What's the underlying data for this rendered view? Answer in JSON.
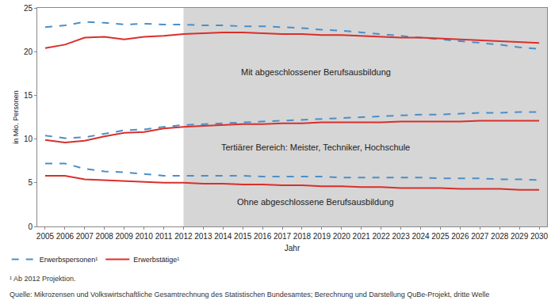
{
  "chart_data": {
    "type": "line",
    "x_label": "Jahr",
    "y_label": "in Mio. Personen",
    "x": [
      2005,
      2006,
      2007,
      2008,
      2009,
      2010,
      2011,
      2012,
      2013,
      2014,
      2015,
      2016,
      2017,
      2018,
      2019,
      2020,
      2021,
      2022,
      2023,
      2024,
      2025,
      2026,
      2027,
      2028,
      2029,
      2030
    ],
    "xlim": [
      2004.6,
      2030.4
    ],
    "xticks": [
      2005,
      2006,
      2007,
      2008,
      2009,
      2010,
      2011,
      2012,
      2013,
      2014,
      2015,
      2016,
      2017,
      2018,
      2019,
      2020,
      2021,
      2022,
      2023,
      2024,
      2025,
      2026,
      2027,
      2028,
      2029,
      2030
    ],
    "ylim": [
      0,
      25
    ],
    "yticks": [
      0,
      5,
      10,
      15,
      20,
      25
    ],
    "grid": false,
    "legend": "bottom left",
    "shade": {
      "from": 2012,
      "to": 2030.4,
      "color": "#d6d6d6"
    },
    "series": [
      {
        "name": "Erwerbspersonen¹",
        "color": "#4a8fc9",
        "line_style": "dash",
        "values": [
          22.8,
          23.0,
          23.4,
          23.3,
          23.1,
          23.2,
          23.1,
          23.1,
          23.0,
          23.0,
          22.9,
          22.9,
          22.8,
          22.7,
          22.5,
          22.4,
          22.2,
          22.0,
          21.8,
          21.6,
          21.4,
          21.2,
          21.0,
          20.8,
          20.5,
          20.3
        ]
      },
      {
        "name": "Erwerbstätige¹",
        "color": "#d92f2b",
        "line_style": "solid",
        "values": [
          20.4,
          20.8,
          21.6,
          21.7,
          21.4,
          21.7,
          21.8,
          22.0,
          22.1,
          22.2,
          22.2,
          22.1,
          22.0,
          22.0,
          21.9,
          21.9,
          21.8,
          21.7,
          21.6,
          21.6,
          21.5,
          21.4,
          21.3,
          21.2,
          21.1,
          21.0
        ]
      },
      {
        "name": "Erwerbspersonen¹",
        "color": "#4a8fc9",
        "line_style": "dash",
        "values": [
          10.4,
          10.1,
          10.2,
          10.6,
          11.0,
          11.1,
          11.4,
          11.6,
          11.7,
          11.8,
          11.9,
          12.0,
          12.1,
          12.2,
          12.3,
          12.4,
          12.5,
          12.6,
          12.7,
          12.8,
          12.8,
          12.9,
          13.0,
          13.0,
          13.1,
          13.1
        ]
      },
      {
        "name": "Erwerbstätige¹",
        "color": "#d92f2b",
        "line_style": "solid",
        "values": [
          9.9,
          9.6,
          9.8,
          10.3,
          10.7,
          10.8,
          11.2,
          11.4,
          11.5,
          11.6,
          11.7,
          11.7,
          11.8,
          11.8,
          11.9,
          11.9,
          11.9,
          11.9,
          12.0,
          12.0,
          12.0,
          12.0,
          12.1,
          12.1,
          12.1,
          12.1
        ]
      },
      {
        "name": "Erwerbspersonen¹",
        "color": "#4a8fc9",
        "line_style": "dash",
        "values": [
          7.2,
          7.2,
          6.6,
          6.3,
          6.2,
          6.0,
          5.8,
          5.8,
          5.8,
          5.8,
          5.8,
          5.7,
          5.7,
          5.7,
          5.7,
          5.6,
          5.6,
          5.6,
          5.6,
          5.6,
          5.5,
          5.5,
          5.5,
          5.4,
          5.4,
          5.3
        ]
      },
      {
        "name": "Erwerbstätige¹",
        "color": "#d92f2b",
        "line_style": "solid",
        "values": [
          5.8,
          5.8,
          5.4,
          5.3,
          5.2,
          5.1,
          5.0,
          5.0,
          4.9,
          4.9,
          4.8,
          4.8,
          4.7,
          4.7,
          4.6,
          4.6,
          4.5,
          4.5,
          4.4,
          4.4,
          4.4,
          4.3,
          4.3,
          4.3,
          4.2,
          4.2
        ]
      }
    ],
    "annotations": [
      {
        "text": "Mit abgeschlossener Berufsausbildung",
        "x": 2018.7,
        "y": 17.7
      },
      {
        "text": "Tertiärer Bereich: Meister, Techniker, Hochschule",
        "x": 2018.7,
        "y": 9.1
      },
      {
        "text": "Ohne abgeschlossene Berufsausbildung",
        "x": 2018.7,
        "y": 2.8
      }
    ],
    "notes": [
      "¹ Ab 2012 Projektion.",
      "Quelle: Mikrozensen und Volkswirtschaftliche Gesamtrechnung des Statistischen Bundesamtes; Berechnung und Darstellung QuBe-Projekt, dritte Welle"
    ]
  }
}
